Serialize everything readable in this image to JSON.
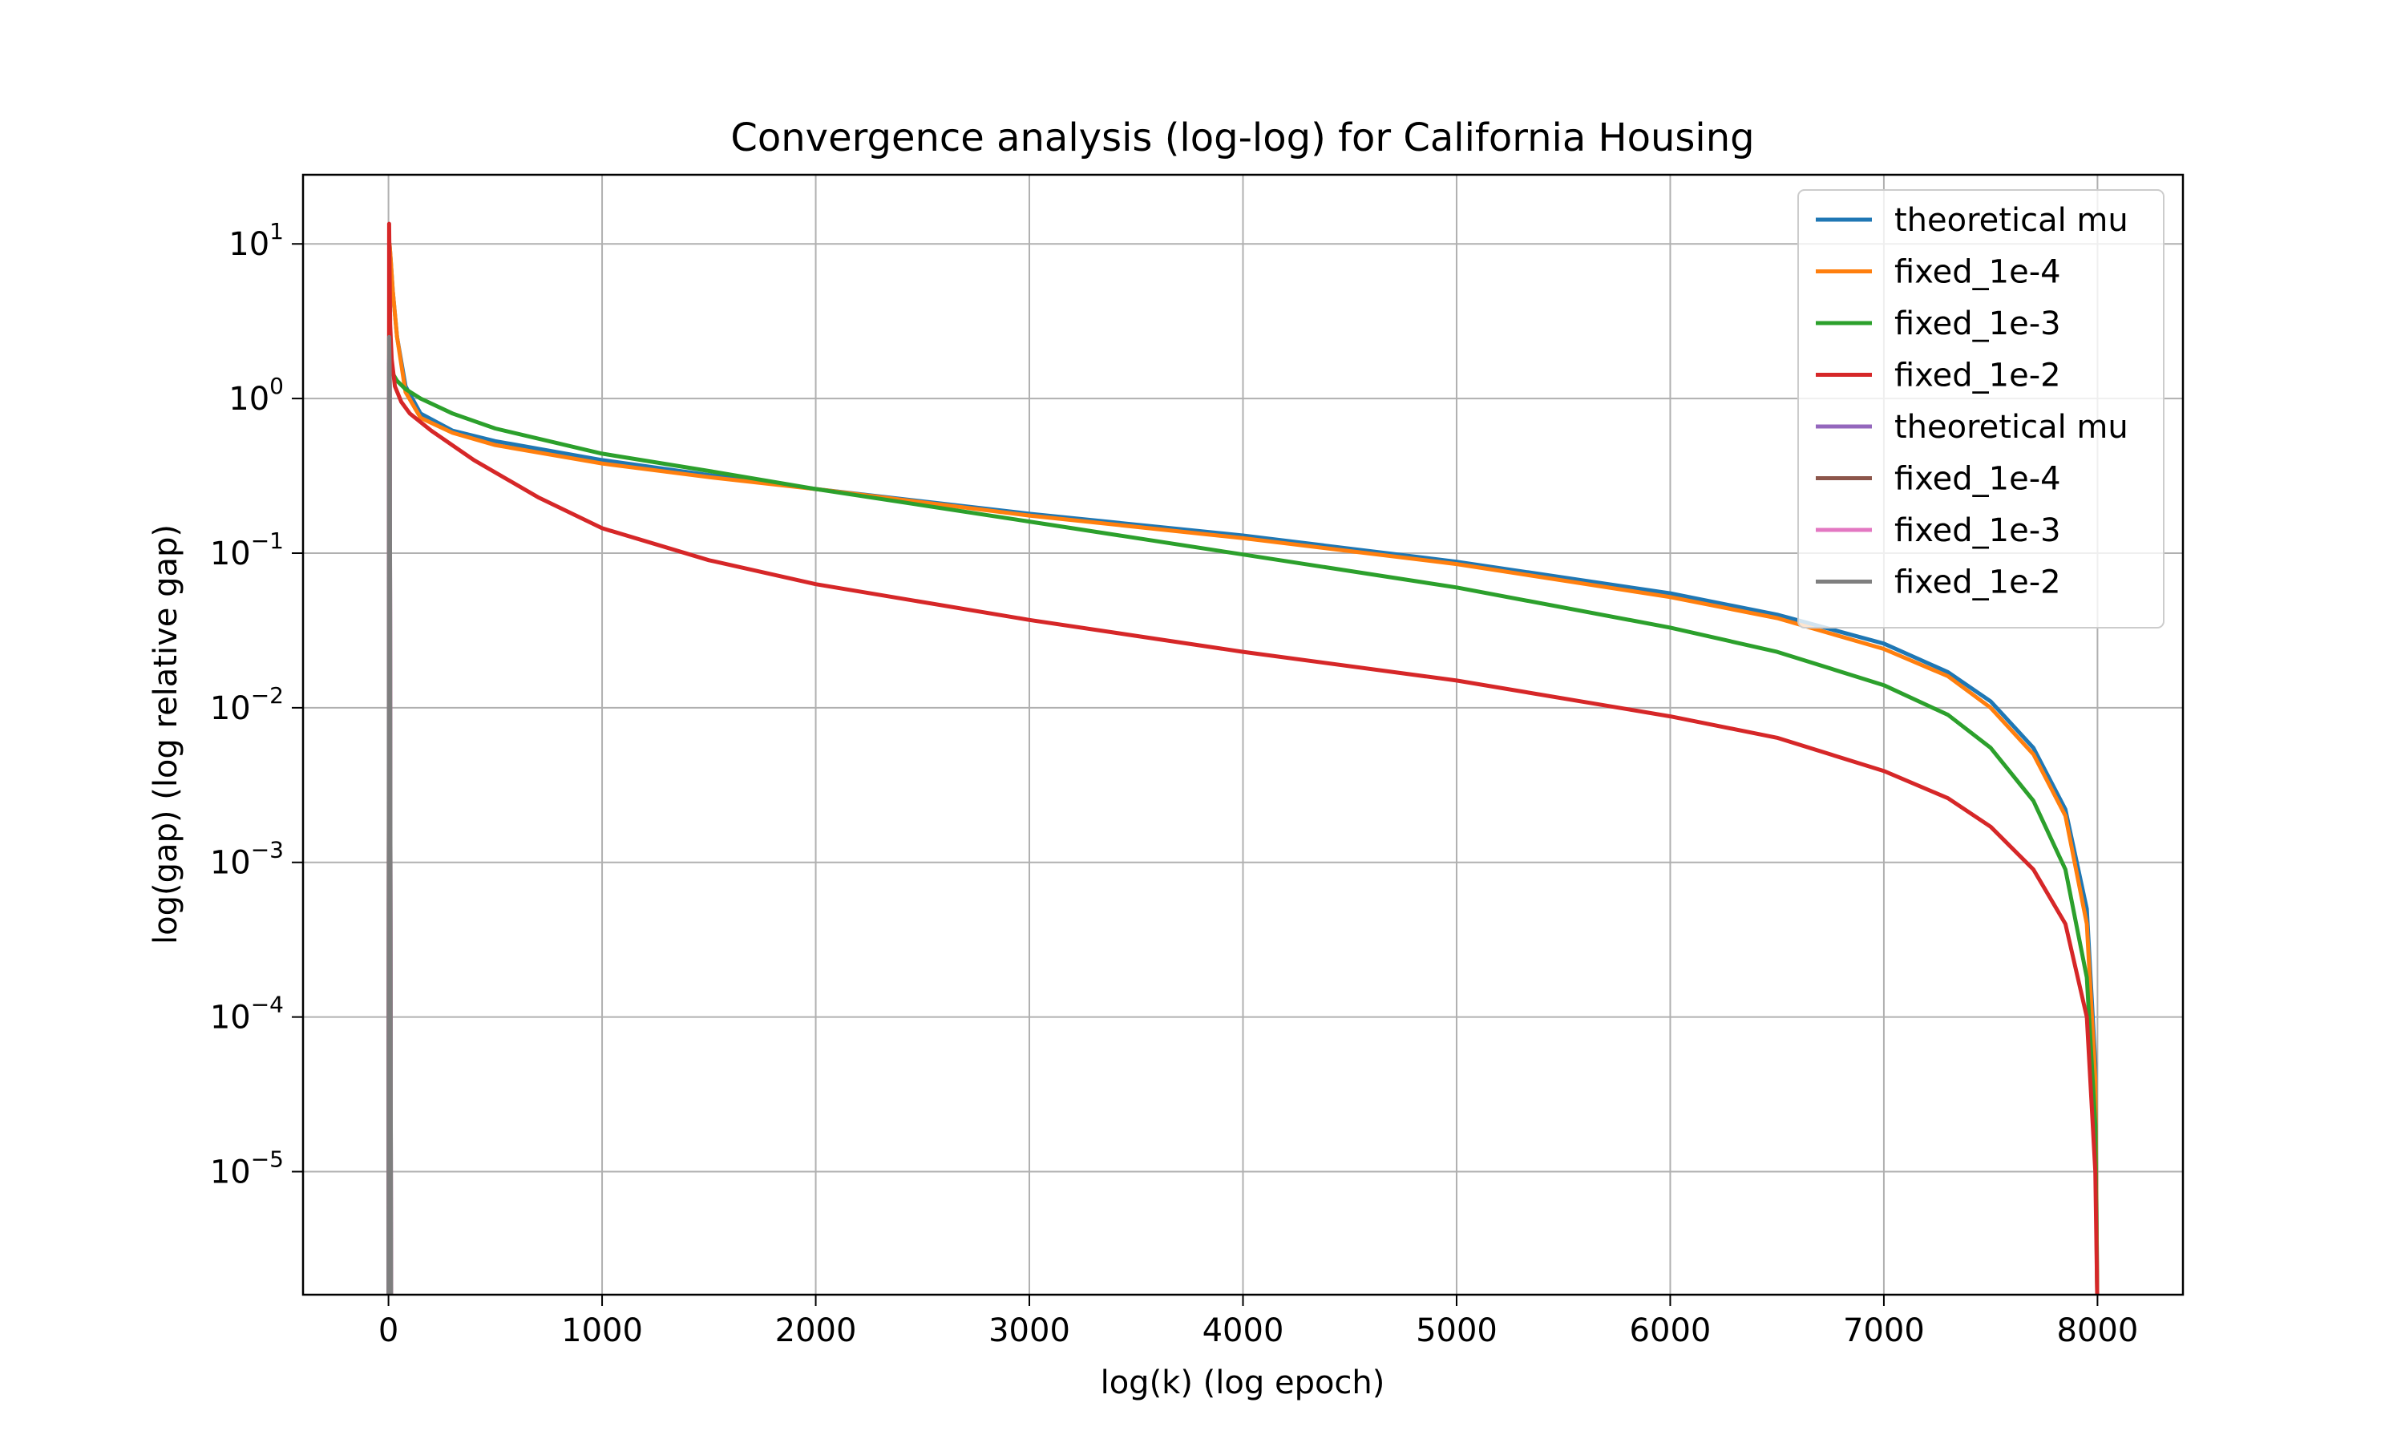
{
  "chart_data": {
    "type": "line",
    "title": "Convergence analysis (log-log) for California Housing",
    "xlabel": "log(k) (log epoch)",
    "ylabel": "log(gap) (log relative gap)",
    "xlim": [
      -400,
      8400
    ],
    "ylim": [
      1.6e-06,
      28
    ],
    "yscale": "log",
    "grid": true,
    "legend_position": "top-right",
    "xticks": [
      0,
      1000,
      2000,
      3000,
      4000,
      5000,
      6000,
      7000,
      8000
    ],
    "xtick_labels": [
      "0",
      "1000",
      "2000",
      "3000",
      "4000",
      "5000",
      "6000",
      "7000",
      "8000"
    ],
    "yticks": [
      {
        "value": 10,
        "base": "10",
        "exp": "1"
      },
      {
        "value": 1,
        "base": "10",
        "exp": "0"
      },
      {
        "value": 0.1,
        "base": "10",
        "exp": "−1"
      },
      {
        "value": 0.01,
        "base": "10",
        "exp": "−2"
      },
      {
        "value": 0.001,
        "base": "10",
        "exp": "−3"
      },
      {
        "value": 0.0001,
        "base": "10",
        "exp": "−4"
      },
      {
        "value": 1e-05,
        "base": "10",
        "exp": "−5"
      }
    ],
    "series": [
      {
        "name": "theoretical mu",
        "color": "#1f77b4",
        "x": [
          0,
          5,
          10,
          20,
          40,
          80,
          150,
          300,
          500,
          1000,
          1500,
          2000,
          3000,
          4000,
          5000,
          6000,
          6500,
          7000,
          7300,
          7500,
          7700,
          7850,
          7950,
          7990,
          7999
        ],
        "y": [
          1.5e-06,
          10,
          8,
          5,
          2.5,
          1.2,
          0.8,
          0.62,
          0.53,
          0.4,
          0.32,
          0.26,
          0.18,
          0.13,
          0.088,
          0.055,
          0.04,
          0.026,
          0.017,
          0.011,
          0.0055,
          0.0022,
          0.0005,
          5e-05,
          1.5e-06
        ]
      },
      {
        "name": "fixed_1e-4",
        "color": "#ff7f0e",
        "x": [
          0,
          5,
          10,
          20,
          40,
          80,
          150,
          300,
          500,
          1000,
          1500,
          2000,
          3000,
          4000,
          5000,
          6000,
          6500,
          7000,
          7300,
          7500,
          7700,
          7850,
          7950,
          7990,
          7999
        ],
        "y": [
          1.5e-06,
          10,
          8,
          5,
          2.5,
          1.1,
          0.75,
          0.6,
          0.5,
          0.38,
          0.31,
          0.26,
          0.175,
          0.125,
          0.085,
          0.052,
          0.038,
          0.024,
          0.016,
          0.01,
          0.005,
          0.002,
          0.0004,
          4e-05,
          1.5e-06
        ]
      },
      {
        "name": "fixed_1e-3",
        "color": "#2ca02c",
        "x": [
          0,
          5,
          10,
          20,
          40,
          80,
          150,
          300,
          500,
          1000,
          1500,
          2000,
          3000,
          4000,
          5000,
          6000,
          6500,
          7000,
          7300,
          7500,
          7700,
          7850,
          7950,
          7990,
          7999
        ],
        "y": [
          1.5e-06,
          2.2,
          1.7,
          1.45,
          1.3,
          1.15,
          1.0,
          0.8,
          0.64,
          0.44,
          0.34,
          0.26,
          0.16,
          0.098,
          0.06,
          0.033,
          0.023,
          0.014,
          0.009,
          0.0055,
          0.0025,
          0.0009,
          0.00018,
          2e-05,
          1.5e-06
        ]
      },
      {
        "name": "fixed_1e-2",
        "color": "#d62728",
        "x": [
          0,
          3,
          8,
          15,
          30,
          60,
          100,
          200,
          400,
          700,
          1000,
          1500,
          2000,
          3000,
          4000,
          5000,
          6000,
          6500,
          7000,
          7300,
          7500,
          7700,
          7850,
          7950,
          7990,
          7999
        ],
        "y": [
          1.5e-06,
          13.5,
          3,
          1.8,
          1.2,
          0.95,
          0.8,
          0.62,
          0.4,
          0.23,
          0.145,
          0.09,
          0.063,
          0.037,
          0.023,
          0.015,
          0.0088,
          0.0064,
          0.0039,
          0.0026,
          0.0017,
          0.0009,
          0.0004,
          0.0001,
          1e-05,
          1.5e-06
        ]
      },
      {
        "name": "theoretical mu",
        "color": "#9467bd",
        "x": [
          0,
          3,
          6,
          12
        ],
        "y": [
          1.5e-06,
          1.8,
          1.2,
          1.5e-06
        ]
      },
      {
        "name": "fixed_1e-4",
        "color": "#8c564b",
        "x": [
          0,
          3,
          6,
          12
        ],
        "y": [
          1.5e-06,
          1.7,
          1.1,
          1.5e-06
        ]
      },
      {
        "name": "fixed_1e-3",
        "color": "#e377c2",
        "x": [
          0,
          3,
          6,
          12
        ],
        "y": [
          1.5e-06,
          1.9,
          1.3,
          1.5e-06
        ]
      },
      {
        "name": "fixed_1e-2",
        "color": "#7f7f7f",
        "x": [
          0,
          3,
          6,
          12
        ],
        "y": [
          1.5e-06,
          2.5,
          1.4,
          1.5e-06
        ]
      }
    ]
  }
}
